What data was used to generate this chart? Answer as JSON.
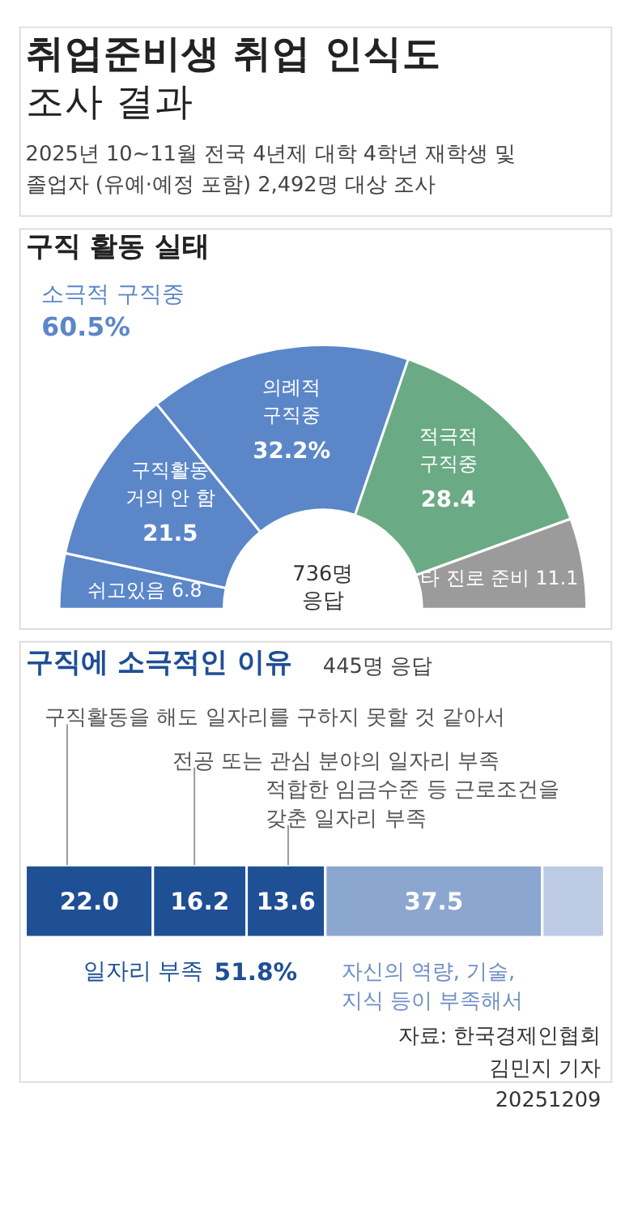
{
  "chart_data": [
    {
      "type": "other",
      "title": "취업준비생 취업 인식도 조사 결과",
      "subtitle": "2025년 10~11월 전국 4년제 대학 4학년 재학생 및 졸업자 (유예·예정 포함) 2,492명 대상 조사"
    },
    {
      "type": "donut",
      "title": "구직 활동 실태",
      "categories": [
        "쉬고있음",
        "구직활동 거의 안 함",
        "의례적 구직중",
        "적극적 구직중",
        "타 진로 준비"
      ],
      "values": [
        6.8,
        21.5,
        32.2,
        28.4,
        11.1
      ],
      "value_labels": [
        "6.8",
        "21.5",
        "32.2%",
        "28.4",
        "11.1"
      ],
      "colors": [
        "#5b87c9",
        "#5b87c9",
        "#5b87c9",
        "#6aaa84",
        "#9b9b9b"
      ],
      "legend": false,
      "annotations": [
        "소극적 구직중 60.5%",
        "736명 응답"
      ]
    },
    {
      "type": "bar",
      "orientation": "horizontal",
      "stacked": true,
      "title": "구직에 소극적인 이유",
      "subtitle": "445명 응답",
      "categories": [
        null
      ],
      "legend": false,
      "series": [
        {
          "name": "구직활동을 해도 일자리를 구하지 못할 것 같아서",
          "color": "#1f4f95",
          "values": [
            22.0
          ],
          "value_labels": [
            "22.0"
          ]
        },
        {
          "name": "전공 또는 관심 분야의 일자리 부족",
          "color": "#1f4f95",
          "values": [
            16.2
          ],
          "value_labels": [
            "16.2"
          ]
        },
        {
          "name": "적합한 임금수준 등 근로조건을 갖춘 일자리 부족",
          "color": "#1f4f95",
          "values": [
            13.6
          ],
          "value_labels": [
            "13.6"
          ]
        },
        {
          "name": "자신의 역량, 기술, 지식 등이 부족해서",
          "color": "#8ba7d0",
          "values": [
            37.5
          ],
          "value_labels": [
            "37.5"
          ]
        },
        {
          "color": "#bccae3",
          "values": [
            10.7
          ],
          "value_labels": [
            null
          ]
        }
      ],
      "annotations": [
        "일자리 부족 51.8%",
        "자료: 한국경제인협회",
        "김민지 기자",
        "20251209"
      ]
    }
  ]
}
